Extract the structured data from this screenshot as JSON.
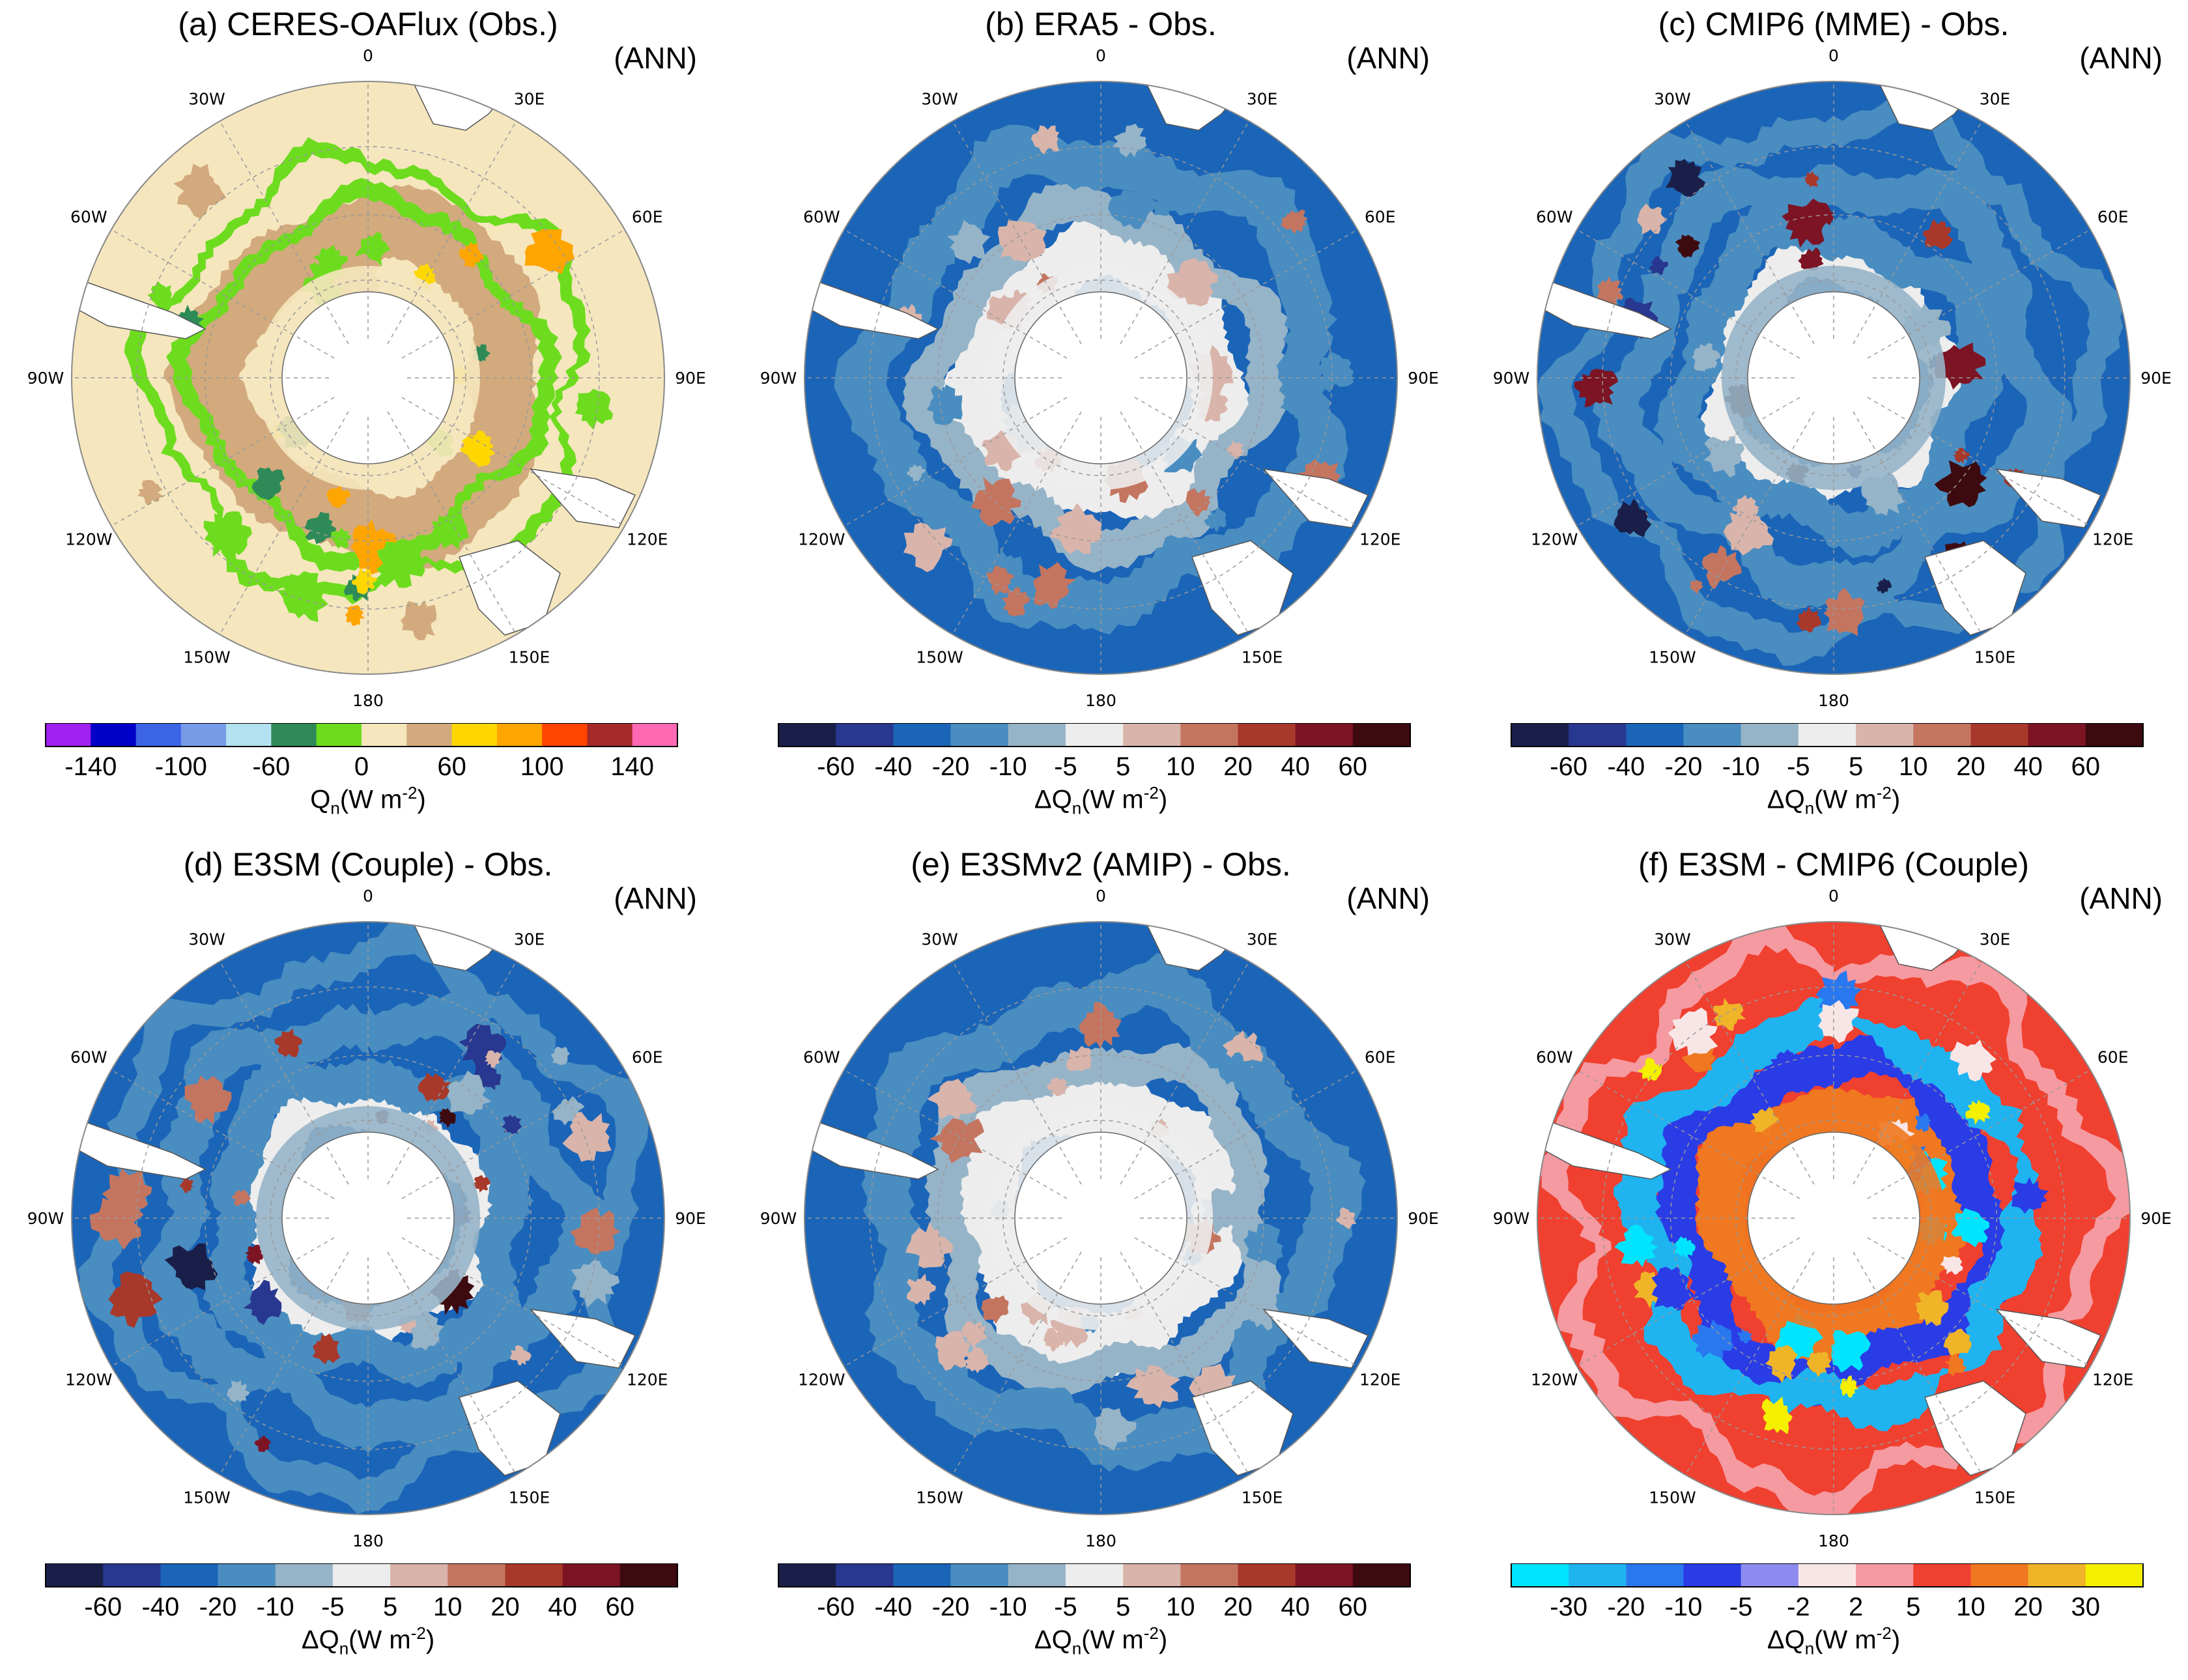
{
  "figure": {
    "panels": [
      {
        "id": "a",
        "title": "(a) CERES-OAFlux (Obs.)",
        "season": "ANN",
        "colorbar": {
          "colors": [
            "#a020f0",
            "#0000c8",
            "#3c64e6",
            "#789be8",
            "#b4e1f0",
            "#2e8b57",
            "#6ddc1e",
            "#f5e6be",
            "#d2aa7d",
            "#ffd700",
            "#ffa500",
            "#ff4500",
            "#a52a2a",
            "#ff69b4"
          ],
          "labels": [
            "-140",
            "-100",
            "-60",
            "0",
            "60",
            "100",
            "140"
          ],
          "label_edges": [
            1,
            3,
            5,
            7,
            9,
            11,
            13
          ],
          "title_prefix": "Q",
          "title_sub": "n",
          "title_unit": "(W m",
          "title_sup": "-2",
          "title_close": ")"
        },
        "scheme": "obs"
      },
      {
        "id": "b",
        "title": "(b) ERA5 - Obs.",
        "season": "ANN",
        "colorbar": {
          "colors": [
            "#1a1f4a",
            "#28378f",
            "#1b65b8",
            "#4a8dc0",
            "#96b4c8",
            "#ededed",
            "#d9b4aa",
            "#c47560",
            "#a8382a",
            "#7c1424",
            "#3d0a10"
          ],
          "labels": [
            "-60",
            "-40",
            "-20",
            "-10",
            "-5",
            "5",
            "10",
            "20",
            "40",
            "60"
          ],
          "label_edges": [
            1,
            2,
            3,
            4,
            5,
            6,
            7,
            8,
            9,
            10
          ],
          "title_prefix": "ΔQ",
          "title_sub": "n",
          "title_unit": "(W m",
          "title_sup": "-2",
          "title_close": ")"
        },
        "scheme": "diff_pale"
      },
      {
        "id": "c",
        "title": "(c) CMIP6 (MME) - Obs.",
        "season": "ANN",
        "colorbar": {
          "colors": [
            "#1a1f4a",
            "#28378f",
            "#1b65b8",
            "#4a8dc0",
            "#96b4c8",
            "#ededed",
            "#d9b4aa",
            "#c47560",
            "#a8382a",
            "#7c1424",
            "#3d0a10"
          ],
          "labels": [
            "-60",
            "-40",
            "-20",
            "-10",
            "-5",
            "5",
            "10",
            "20",
            "40",
            "60"
          ],
          "label_edges": [
            1,
            2,
            3,
            4,
            5,
            6,
            7,
            8,
            9,
            10
          ],
          "title_prefix": "ΔQ",
          "title_sub": "n",
          "title_unit": "(W m",
          "title_sup": "-2",
          "title_close": ")"
        },
        "scheme": "diff_strong"
      },
      {
        "id": "d",
        "title": "(d) E3SM (Couple) - Obs.",
        "season": "ANN",
        "colorbar": {
          "colors": [
            "#1a1f4a",
            "#28378f",
            "#1b65b8",
            "#4a8dc0",
            "#96b4c8",
            "#ededed",
            "#d9b4aa",
            "#c47560",
            "#a8382a",
            "#7c1424",
            "#3d0a10"
          ],
          "labels": [
            "-60",
            "-40",
            "-20",
            "-10",
            "-5",
            "5",
            "10",
            "20",
            "40",
            "60"
          ],
          "label_edges": [
            1,
            2,
            3,
            4,
            5,
            6,
            7,
            8,
            9,
            10
          ],
          "title_prefix": "ΔQ",
          "title_sub": "n",
          "title_unit": "(W m",
          "title_sup": "-2",
          "title_close": ")"
        },
        "scheme": "diff_strong"
      },
      {
        "id": "e",
        "title": "(e) E3SMv2 (AMIP) - Obs.",
        "season": "ANN",
        "colorbar": {
          "colors": [
            "#1a1f4a",
            "#28378f",
            "#1b65b8",
            "#4a8dc0",
            "#96b4c8",
            "#ededed",
            "#d9b4aa",
            "#c47560",
            "#a8382a",
            "#7c1424",
            "#3d0a10"
          ],
          "labels": [
            "-60",
            "-40",
            "-20",
            "-10",
            "-5",
            "5",
            "10",
            "20",
            "40",
            "60"
          ],
          "label_edges": [
            1,
            2,
            3,
            4,
            5,
            6,
            7,
            8,
            9,
            10
          ],
          "title_prefix": "ΔQ",
          "title_sub": "n",
          "title_unit": "(W m",
          "title_sup": "-2",
          "title_close": ")"
        },
        "scheme": "diff_pale"
      },
      {
        "id": "f",
        "title": "(f) E3SM - CMIP6 (Couple)",
        "season": "ANN",
        "colorbar": {
          "colors": [
            "#00e5ff",
            "#1fb4f0",
            "#2a78f0",
            "#2a3ce6",
            "#8c8cf0",
            "#f8e6e6",
            "#f59aa0",
            "#f04030",
            "#f07820",
            "#f0b428",
            "#f5f000"
          ],
          "labels": [
            "-30",
            "-20",
            "-10",
            "-5",
            "-2",
            "2",
            "5",
            "10",
            "20",
            "30"
          ],
          "label_edges": [
            1,
            2,
            3,
            4,
            5,
            6,
            7,
            8,
            9,
            10
          ],
          "title_prefix": "ΔQ",
          "title_sub": "n",
          "title_unit": "(W m",
          "title_sup": "-2",
          "title_close": ")"
        },
        "scheme": "diff_f"
      }
    ],
    "longitude_labels": [
      "0",
      "30E",
      "60E",
      "90E",
      "120E",
      "150E",
      "180",
      "150W",
      "120W",
      "90W",
      "60W",
      "30W"
    ]
  }
}
